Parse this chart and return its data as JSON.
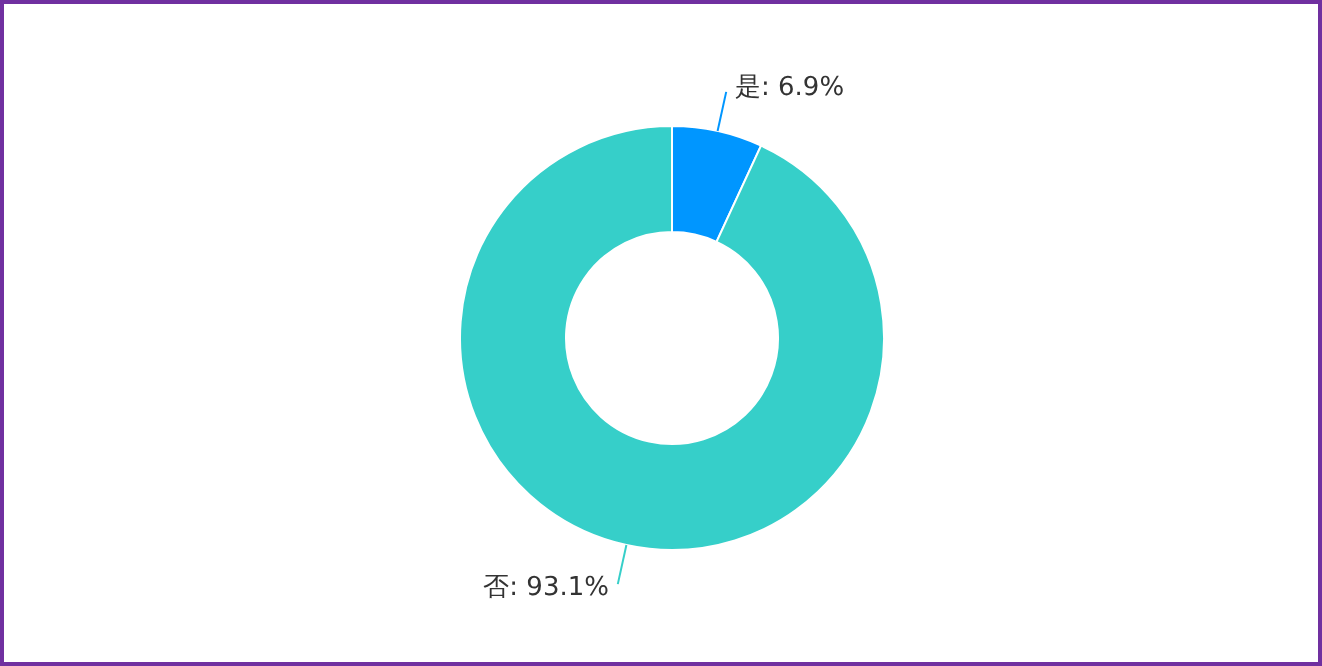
{
  "chart_data": {
    "type": "donut",
    "categories": [
      "是",
      "否"
    ],
    "values": [
      6.9,
      93.1
    ],
    "value_labels": [
      "6.9%",
      "93.1%"
    ],
    "colors": [
      "#0096ff",
      "#36cfc9"
    ]
  }
}
